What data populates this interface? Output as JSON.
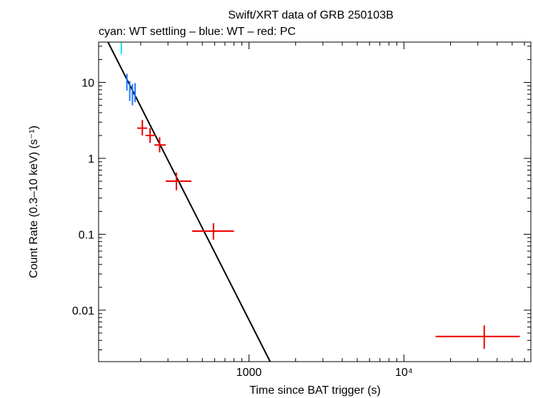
{
  "chart_data": {
    "type": "scatter",
    "title": "Swift/XRT data of GRB 250103B",
    "subtitle": "cyan: WT settling – blue: WT – red: PC",
    "xlabel": "Time since BAT trigger (s)",
    "ylabel": "Count Rate (0.3–10 keV) (s⁻¹)",
    "xscale": "log",
    "yscale": "log",
    "xlim": [
      107,
      66000
    ],
    "ylim": [
      0.0021,
      34
    ],
    "x_ticks": [
      {
        "value": 1000,
        "label": "1000"
      },
      {
        "value": 10000,
        "label": "10⁴"
      }
    ],
    "y_ticks": [
      {
        "value": 10,
        "label": "10"
      },
      {
        "value": 1,
        "label": "1"
      },
      {
        "value": 0.1,
        "label": "0.1"
      },
      {
        "value": 0.01,
        "label": "0.01"
      }
    ],
    "series": [
      {
        "name": "WT settling",
        "color": "#00e5ee",
        "points": [
          {
            "x": 150,
            "y": 28,
            "xerr": [
              0,
              0
            ],
            "yerr": [
              23.5,
              33.5
            ]
          }
        ]
      },
      {
        "name": "WT",
        "color": "#1e78ff",
        "points": [
          {
            "x": 163,
            "y": 10.0,
            "xerr": [
              161,
              165
            ],
            "yerr": [
              7.8,
              13.0
            ]
          },
          {
            "x": 170,
            "y": 7.8,
            "xerr": [
              168,
              172
            ],
            "yerr": [
              5.7,
              10.4
            ]
          },
          {
            "x": 177,
            "y": 7.0,
            "xerr": [
              175,
              179
            ],
            "yerr": [
              5.0,
              9.5
            ]
          },
          {
            "x": 184,
            "y": 7.2,
            "xerr": [
              182,
              186
            ],
            "yerr": [
              5.5,
              9.8
            ]
          }
        ]
      },
      {
        "name": "PC",
        "color": "#ee0000",
        "points": [
          {
            "x": 205,
            "y": 2.5,
            "xerr": [
              190,
              220
            ],
            "yerr": [
              2.0,
              3.2
            ]
          },
          {
            "x": 230,
            "y": 2.0,
            "xerr": [
              215,
              250
            ],
            "yerr": [
              1.6,
              2.5
            ]
          },
          {
            "x": 265,
            "y": 1.5,
            "xerr": [
              245,
              290
            ],
            "yerr": [
              1.2,
              1.9
            ]
          },
          {
            "x": 340,
            "y": 0.5,
            "xerr": [
              290,
              425
            ],
            "yerr": [
              0.38,
              0.65
            ]
          },
          {
            "x": 590,
            "y": 0.11,
            "xerr": [
              430,
              800
            ],
            "yerr": [
              0.085,
              0.14
            ]
          },
          {
            "x": 33000,
            "y": 0.0045,
            "xerr": [
              16000,
              56000
            ],
            "yerr": [
              0.0031,
              0.0063
            ]
          }
        ]
      }
    ],
    "model": {
      "name": "power-law fit",
      "color": "#000000",
      "x": [
        123,
        1370
      ],
      "y": [
        34,
        0.0021
      ]
    }
  }
}
